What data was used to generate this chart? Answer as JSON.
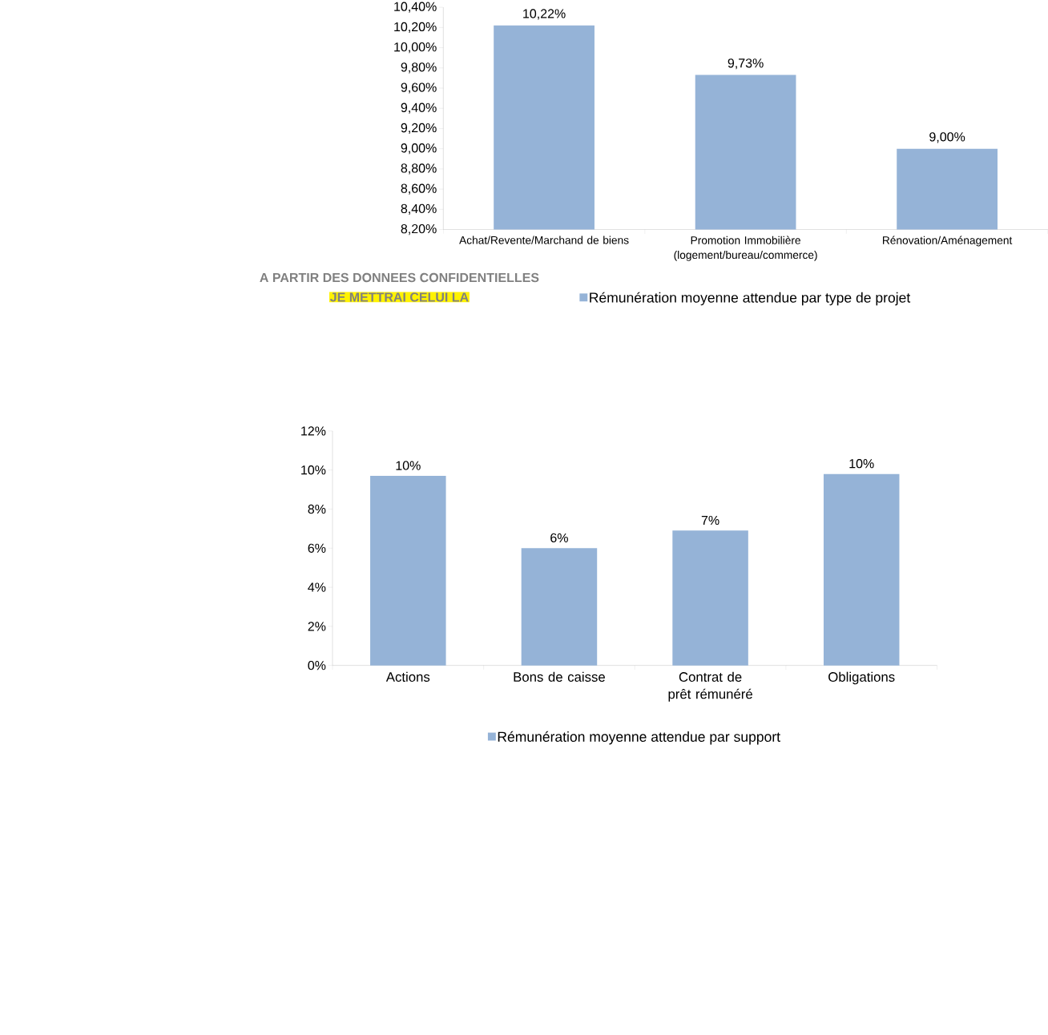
{
  "chart_data": [
    {
      "type": "bar",
      "title": "A PARTIR DES DONNEES CONFIDENTIELLES",
      "subtitle": "JE METTRAI CELUI LA",
      "categories": [
        "Achat/Revente/Marchand de biens",
        "Promotion Immobilière (logement/bureau/commerce)",
        "Rénovation/Aménagement"
      ],
      "series": [
        {
          "name": "Rémunération moyenne attendue par type de projet",
          "color": "#95b3d7",
          "values": [
            10.22,
            9.73,
            9.0
          ],
          "value_labels": [
            "10,22%",
            "9,73%",
            "9,00%"
          ]
        }
      ],
      "ylim": [
        8.2,
        10.4
      ],
      "yticks": [
        {
          "value": 8.2,
          "label": "8,20%"
        },
        {
          "value": 8.4,
          "label": "8,40%"
        },
        {
          "value": 8.6,
          "label": "8,60%"
        },
        {
          "value": 8.8,
          "label": "8,80%"
        },
        {
          "value": 9.0,
          "label": "9,00%"
        },
        {
          "value": 9.2,
          "label": "9,20%"
        },
        {
          "value": 9.4,
          "label": "9,40%"
        },
        {
          "value": 9.6,
          "label": "9,60%"
        },
        {
          "value": 9.8,
          "label": "9,80%"
        },
        {
          "value": 10.0,
          "label": "10,00%"
        },
        {
          "value": 10.2,
          "label": "10,20%"
        },
        {
          "value": 10.4,
          "label": "10,40%"
        }
      ],
      "legend": "bottom"
    },
    {
      "type": "bar",
      "categories": [
        "Actions",
        "Bons de caisse",
        "Contrat de prêt rémunéré",
        "Obligations"
      ],
      "series": [
        {
          "name": "Rémunération moyenne attendue par support",
          "color": "#95b3d7",
          "values": [
            9.7,
            6.0,
            6.9,
            9.8
          ],
          "value_labels": [
            "10%",
            "6%",
            "7%",
            "10%"
          ]
        }
      ],
      "ylim": [
        0,
        12
      ],
      "yticks": [
        {
          "value": 0,
          "label": "0%"
        },
        {
          "value": 2,
          "label": "2%"
        },
        {
          "value": 4,
          "label": "4%"
        },
        {
          "value": 6,
          "label": "6%"
        },
        {
          "value": 8,
          "label": "8%"
        },
        {
          "value": 10,
          "label": "10%"
        },
        {
          "value": 12,
          "label": "12%"
        }
      ],
      "legend": "bottom"
    }
  ]
}
